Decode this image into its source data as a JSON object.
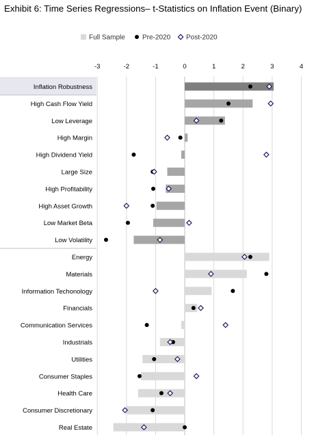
{
  "chart_data": {
    "type": "bar",
    "title": "Exhibit 6: Time Series Regressions– t-Statistics on Inflation Event (Binary)",
    "xlim": [
      -3,
      4
    ],
    "x_ticks": [
      "-3",
      "-2",
      "-1",
      "0",
      "1",
      "2",
      "3",
      "4"
    ],
    "grid": true,
    "legend_position": "top",
    "legend": [
      {
        "name": "Full Sample",
        "marker": "bar"
      },
      {
        "name": "Pre-2020",
        "marker": "filled-circle"
      },
      {
        "name": "Post-2020",
        "marker": "open-diamond"
      }
    ],
    "categories": [
      "Inflation Robustness",
      "High Cash Flow Yield",
      "Low Leverage",
      "High Margin",
      "High Dividend Yield",
      "Large Size",
      "High Profitability",
      "High Asset Growth",
      "Low Market Beta",
      "Low Volatility",
      "Energy",
      "Materials",
      "Information Techonology",
      "Financials",
      "Communication Services",
      "Industrials",
      "Utilities",
      "Consumer Staples",
      "Health Care",
      "Consumer Discretionary",
      "Real Estate"
    ],
    "groups": [
      {
        "name": "factors",
        "start": 0,
        "count": 10
      },
      {
        "name": "sectors",
        "start": 10,
        "count": 11
      }
    ],
    "series": [
      {
        "name": "Full Sample",
        "values": [
          3.05,
          2.33,
          1.38,
          0.1,
          -0.12,
          -0.6,
          -0.65,
          -0.97,
          -1.08,
          -1.75,
          2.9,
          2.13,
          0.92,
          0.43,
          -0.12,
          -0.85,
          -1.45,
          -1.5,
          -1.6,
          -2.0,
          -2.45
        ]
      },
      {
        "name": "Pre-2020",
        "values": [
          2.25,
          1.5,
          1.25,
          -0.15,
          -1.75,
          -1.1,
          -1.08,
          -1.1,
          -1.95,
          -2.7,
          2.25,
          2.8,
          1.65,
          0.3,
          -1.3,
          -0.4,
          -1.05,
          -1.55,
          -0.8,
          -1.1,
          0.0
        ]
      },
      {
        "name": "Post-2020",
        "values": [
          2.9,
          2.95,
          0.4,
          -0.6,
          2.8,
          -1.05,
          -0.55,
          -2.0,
          0.15,
          -0.85,
          2.05,
          0.9,
          -1.0,
          0.55,
          1.4,
          -0.5,
          -0.25,
          0.4,
          -0.5,
          -2.05,
          -1.4
        ]
      }
    ],
    "colors": {
      "factor_bar": "#a6a6a6",
      "factor_bar_highlight": "#7f7f7f",
      "sector_bar": "#d9d9d9",
      "pre_marker": "#000000",
      "post_marker": "#1f1f5f",
      "gridline": "#d9d9d9",
      "label_band": "#e7e7f0"
    }
  }
}
